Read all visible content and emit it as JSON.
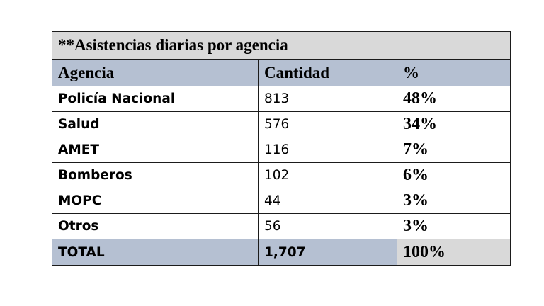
{
  "table": {
    "title": "**Asistencias diarias por agencia",
    "headers": {
      "agency": "Agencia",
      "quantity": "Cantidad",
      "percent": "%"
    },
    "rows": [
      {
        "agency": "Policía Nacional",
        "quantity": "813",
        "percent": "48%"
      },
      {
        "agency": "Salud",
        "quantity": "576",
        "percent": "34%"
      },
      {
        "agency": "AMET",
        "quantity": "116",
        "percent": "7%"
      },
      {
        "agency": "Bomberos",
        "quantity": "102",
        "percent": "6%"
      },
      {
        "agency": "MOPC",
        "quantity": "44",
        "percent": "3%"
      },
      {
        "agency": "Otros",
        "quantity": "56",
        "percent": "3%"
      }
    ],
    "total": {
      "agency": "TOTAL",
      "quantity": "1,707",
      "percent": "100%"
    }
  },
  "colors": {
    "title_background": "#d9d9d9",
    "header_background": "#b5c0d2",
    "total_background": "#b5c0d2",
    "total_percent_background": "#d9d9d9",
    "border": "#1b1b1b"
  }
}
